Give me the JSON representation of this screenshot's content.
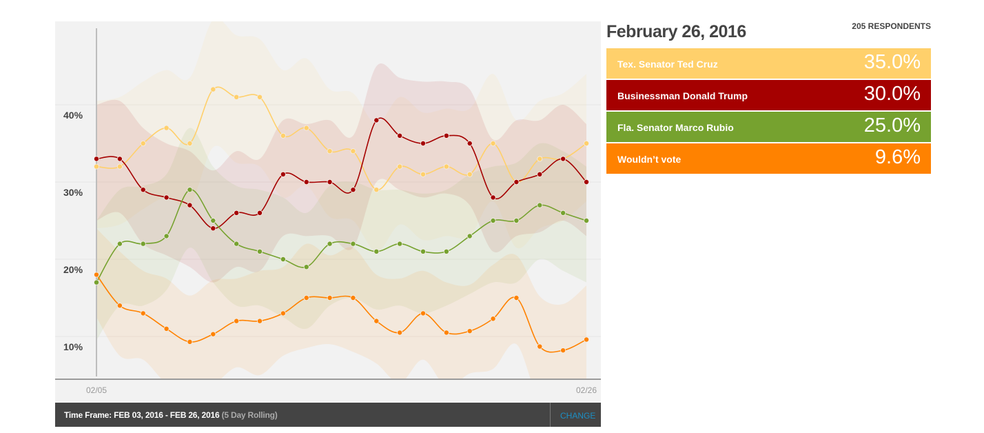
{
  "header": {
    "date": "February 26, 2016",
    "respondents": "205 RESPONDENTS"
  },
  "results": [
    {
      "name": "Tex. Senator Ted Cruz",
      "pct": "35.0%",
      "color": "#ffd06b"
    },
    {
      "name": "Businessman Donald Trump",
      "pct": "30.0%",
      "color": "#a50000"
    },
    {
      "name": "Fla. Senator Marco Rubio",
      "pct": "25.0%",
      "color": "#76a22f"
    },
    {
      "name": "Wouldn’t vote",
      "pct": "9.6%",
      "color": "#ff8200"
    }
  ],
  "footer": {
    "timeframe_label": "Time Frame: FEB 03, 2016 - FEB 26, 2016",
    "rolling_label": "(5 Day Rolling)",
    "change_label": "CHANGE"
  },
  "axis": {
    "y_labels": [
      "40%",
      "30%",
      "20%",
      "10%"
    ],
    "x_start": "02/05",
    "x_end": "02/26"
  },
  "chart_data": {
    "type": "line",
    "title": "",
    "xlabel": "",
    "ylabel": "",
    "ylim": [
      0,
      50
    ],
    "yticks": [
      10,
      20,
      30,
      40
    ],
    "grid": true,
    "legend_position": "right panel",
    "x": [
      "02/05",
      "02/06",
      "02/07",
      "02/08",
      "02/09",
      "02/10",
      "02/11",
      "02/12",
      "02/13",
      "02/14",
      "02/15",
      "02/16",
      "02/17",
      "02/18",
      "02/19",
      "02/20",
      "02/21",
      "02/22",
      "02/23",
      "02/24",
      "02/25",
      "02/26"
    ],
    "series": [
      {
        "name": "Tex. Senator Ted Cruz",
        "color": "#ffd06b",
        "values": [
          32,
          32,
          35,
          37,
          35,
          42,
          41,
          41,
          36,
          37,
          34,
          34,
          29,
          32,
          31,
          32,
          31,
          35,
          30,
          33,
          33,
          35
        ]
      },
      {
        "name": "Businessman Donald Trump",
        "color": "#a50000",
        "values": [
          33,
          33,
          29,
          28,
          27,
          24,
          26,
          26,
          31,
          30,
          30,
          29,
          38,
          36,
          35,
          36,
          35,
          28,
          30,
          31,
          33,
          30
        ]
      },
      {
        "name": "Fla. Senator Marco Rubio",
        "color": "#76a22f",
        "values": [
          17,
          22,
          22,
          23,
          29,
          25,
          22,
          21,
          20,
          19,
          22,
          22,
          21,
          22,
          21,
          21,
          23,
          25,
          25,
          27,
          26,
          25
        ]
      },
      {
        "name": "Wouldn’t vote",
        "color": "#ff8200",
        "values": [
          18,
          14,
          13,
          11,
          9.3,
          10.3,
          12,
          12,
          13,
          15,
          15,
          15,
          12,
          10.5,
          13,
          10.5,
          10.7,
          12.3,
          15,
          8.7,
          8.2,
          9.6
        ]
      }
    ],
    "bands": "shaded confidence intervals around each series (5 day rolling)"
  }
}
